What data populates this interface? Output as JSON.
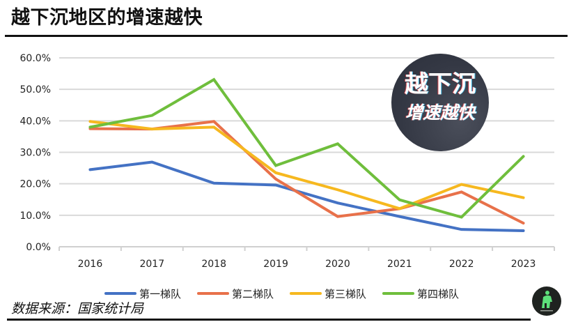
{
  "header": {
    "title": "越下沉地区的增速越快"
  },
  "badge": {
    "line1": "越下沉",
    "line2": "增速越快"
  },
  "footer": {
    "source": "数据来源：国家统计局"
  },
  "logo": {
    "icon": "green-figure-logo-icon"
  },
  "chart_data": {
    "type": "line",
    "title": "越下沉地区的增速越快",
    "xlabel": "",
    "ylabel": "",
    "categories": [
      "2016",
      "2017",
      "2018",
      "2019",
      "2020",
      "2021",
      "2022",
      "2023"
    ],
    "ylim": [
      0,
      60
    ],
    "yticks": [
      "0.0%",
      "10.0%",
      "20.0%",
      "30.0%",
      "40.0%",
      "50.0%",
      "60.0%"
    ],
    "grid": true,
    "legend_position": "bottom",
    "series": [
      {
        "name": "第一梯队",
        "color": "#4472c4",
        "values": [
          24.5,
          26.9,
          20.2,
          19.6,
          13.9,
          9.6,
          5.5,
          5.1
        ]
      },
      {
        "name": "第二梯队",
        "color": "#e8714a",
        "values": [
          37.5,
          37.4,
          39.8,
          21.5,
          9.6,
          12.1,
          17.4,
          7.5
        ]
      },
      {
        "name": "第三梯队",
        "color": "#f6b81f",
        "values": [
          39.8,
          37.4,
          38.0,
          23.5,
          18.1,
          12.1,
          19.8,
          15.6
        ]
      },
      {
        "name": "第四梯队",
        "color": "#6fbe3c",
        "values": [
          38.0,
          41.7,
          53.1,
          25.8,
          32.7,
          14.9,
          9.4,
          28.7
        ]
      }
    ]
  }
}
